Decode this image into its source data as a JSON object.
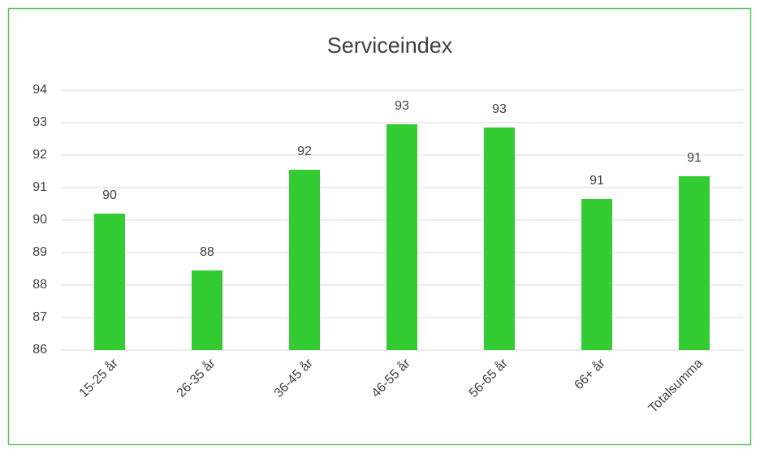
{
  "chart_data": {
    "type": "bar",
    "title": "Serviceindex",
    "categories": [
      "15-25 år",
      "26-35 år",
      "36-45 år",
      "46-55 år",
      "56-65 år",
      "66+ år",
      "Totalsumma"
    ],
    "values": [
      90.2,
      88.45,
      91.55,
      92.95,
      92.85,
      90.65,
      91.35
    ],
    "value_labels": [
      "90",
      "88",
      "92",
      "93",
      "93",
      "91",
      "91"
    ],
    "color": "#33cc33",
    "ylim": [
      86,
      94
    ],
    "yticks": [
      86,
      87,
      88,
      89,
      90,
      91,
      92,
      93,
      94
    ],
    "grid": true
  }
}
